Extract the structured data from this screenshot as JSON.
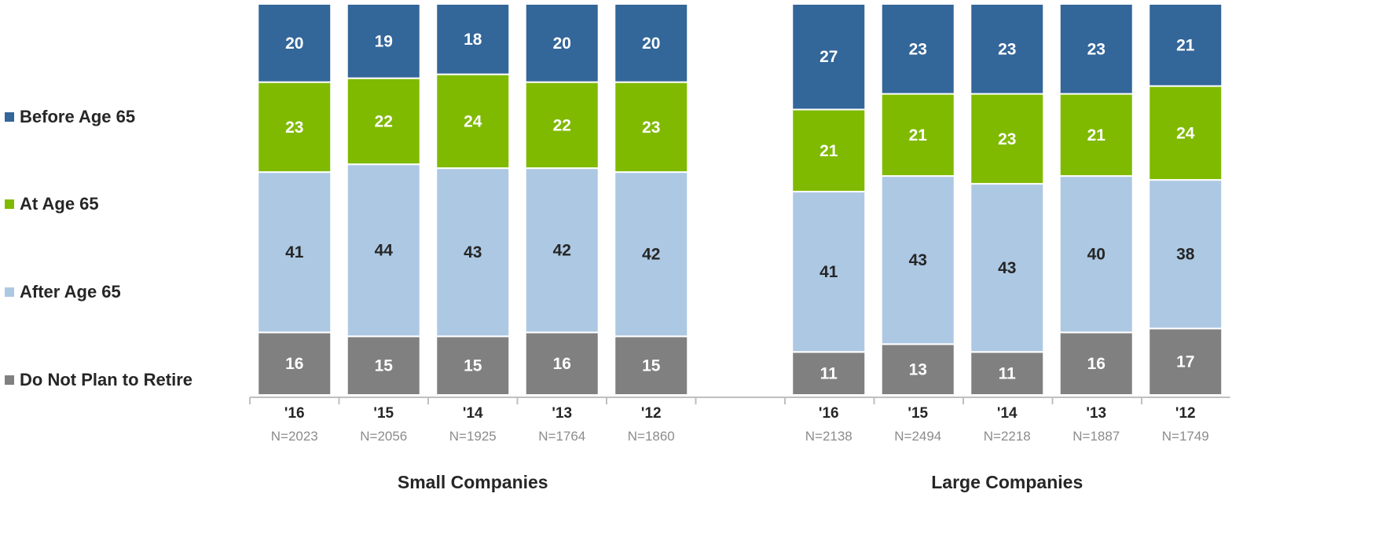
{
  "chart_data": {
    "type": "bar",
    "stacked": true,
    "normalized_percent": true,
    "title": "",
    "legend": {
      "placement": "left",
      "entries": [
        {
          "name": "Before Age 65",
          "color": "#336699"
        },
        {
          "name": "At Age 65",
          "color": "#7fba00"
        },
        {
          "name": "After Age 65",
          "color": "#adc8e3"
        },
        {
          "name": "Do Not Plan to Retire",
          "color": "#808080"
        }
      ]
    },
    "groups": [
      {
        "name": "Small Companies",
        "categories": [
          "'16",
          "'15",
          "'14",
          "'13",
          "'12"
        ],
        "n_labels": [
          "N=2023",
          "N=2056",
          "N=1925",
          "N=1764",
          "N=1860"
        ],
        "series": [
          {
            "name": "Do Not Plan to Retire",
            "values": [
              16,
              15,
              15,
              16,
              15
            ]
          },
          {
            "name": "After Age 65",
            "values": [
              41,
              44,
              43,
              42,
              42
            ]
          },
          {
            "name": "At Age 65",
            "values": [
              23,
              22,
              24,
              22,
              23
            ]
          },
          {
            "name": "Before Age 65",
            "values": [
              20,
              19,
              18,
              20,
              20
            ]
          }
        ]
      },
      {
        "name": "Large Companies",
        "categories": [
          "'16",
          "'15",
          "'14",
          "'13",
          "'12"
        ],
        "n_labels": [
          "N=2138",
          "N=2494",
          "N=2218",
          "N=1887",
          "N=1749"
        ],
        "series": [
          {
            "name": "Do Not Plan to Retire",
            "values": [
              11,
              13,
              11,
              16,
              17
            ]
          },
          {
            "name": "After Age 65",
            "values": [
              41,
              43,
              43,
              40,
              38
            ]
          },
          {
            "name": "At Age 65",
            "values": [
              21,
              21,
              23,
              21,
              24
            ]
          },
          {
            "name": "Before Age 65",
            "values": [
              27,
              23,
              23,
              23,
              21
            ]
          }
        ]
      }
    ],
    "label_colors": {
      "Before Age 65": "#ffffff",
      "At Age 65": "#ffffff",
      "After Age 65": "#262626",
      "Do Not Plan to Retire": "#ffffff"
    },
    "grid": false
  }
}
